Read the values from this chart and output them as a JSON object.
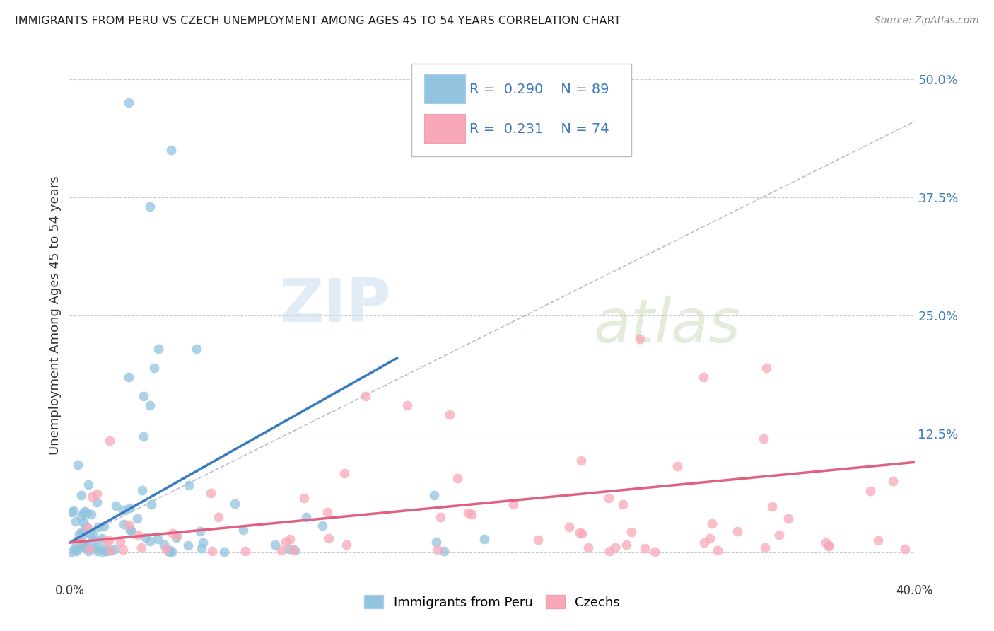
{
  "title": "IMMIGRANTS FROM PERU VS CZECH UNEMPLOYMENT AMONG AGES 45 TO 54 YEARS CORRELATION CHART",
  "source": "Source: ZipAtlas.com",
  "ylabel": "Unemployment Among Ages 45 to 54 years",
  "xlim": [
    0.0,
    0.4
  ],
  "ylim": [
    -0.03,
    0.53
  ],
  "yticks": [
    0.0,
    0.125,
    0.25,
    0.375,
    0.5
  ],
  "ytick_labels": [
    "",
    "12.5%",
    "25.0%",
    "37.5%",
    "50.0%"
  ],
  "xticks": [
    0.0,
    0.08,
    0.16,
    0.24,
    0.32,
    0.4
  ],
  "xtick_labels": [
    "0.0%",
    "",
    "",
    "",
    "",
    "40.0%"
  ],
  "color_peru": "#92c4e0",
  "color_czech": "#f8a8b8",
  "trend_peru_color": "#3a7abf",
  "trend_czech_color": "#e06080",
  "background_color": "#ffffff",
  "grid_color": "#cccccc",
  "watermark_zip": "ZIP",
  "watermark_atlas": "atlas",
  "legend_label1": "Immigrants from Peru",
  "legend_label2": "Czechs"
}
